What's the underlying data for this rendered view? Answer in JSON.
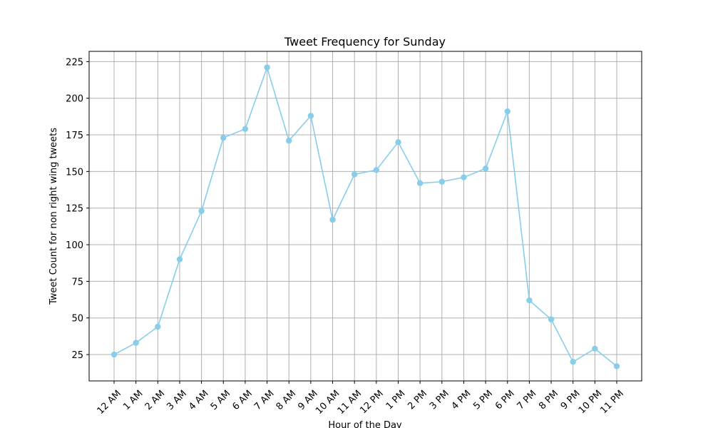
{
  "chart_data": {
    "type": "line",
    "title": "Tweet Frequency for Sunday",
    "xlabel": "Hour of the Day",
    "ylabel": "Tweet Count for non right wing tweets",
    "categories": [
      "12 AM",
      "1 AM",
      "2 AM",
      "3 AM",
      "4 AM",
      "5 AM",
      "6 AM",
      "7 AM",
      "8 AM",
      "9 AM",
      "10 AM",
      "11 AM",
      "12 PM",
      "1 PM",
      "2 PM",
      "3 PM",
      "4 PM",
      "5 PM",
      "6 PM",
      "7 PM",
      "8 PM",
      "9 PM",
      "10 PM",
      "11 PM"
    ],
    "series": [
      {
        "values": [
          25,
          33,
          44,
          90,
          123,
          173,
          179,
          221,
          171,
          188,
          117,
          148,
          151,
          170,
          142,
          143,
          146,
          152,
          191,
          62,
          49,
          20,
          29,
          17
        ],
        "color": "#87ceeb",
        "marker": "circle"
      }
    ],
    "yticks": [
      25,
      50,
      75,
      100,
      125,
      150,
      175,
      200,
      225
    ],
    "ylim": [
      7,
      232
    ],
    "grid": true,
    "xtick_rotation": 45,
    "colors": {
      "line": "#87ceeb",
      "grid": "#b0b0b0",
      "axes": "#000000"
    }
  }
}
